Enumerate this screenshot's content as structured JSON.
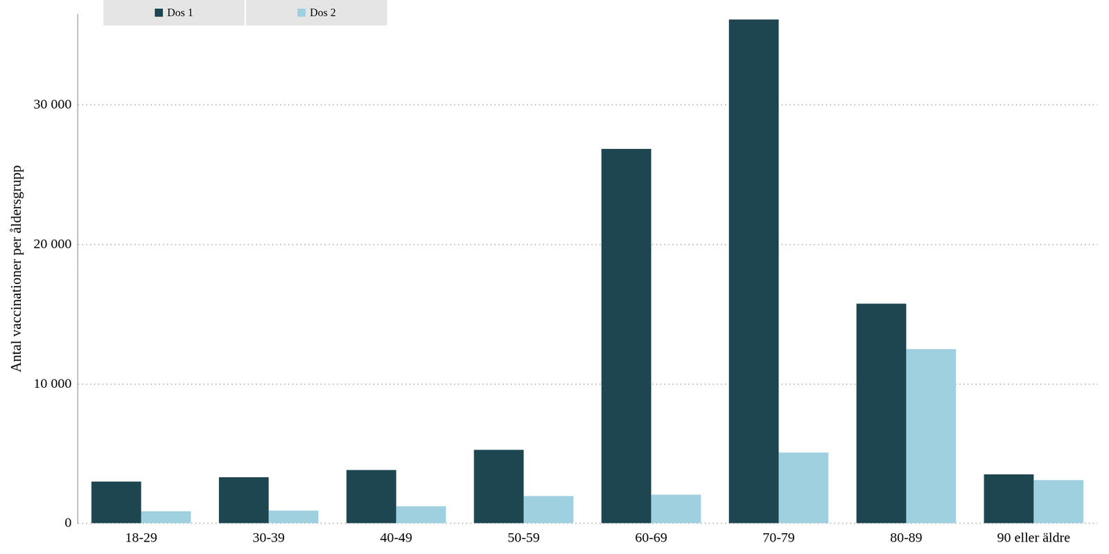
{
  "chart_data": {
    "type": "bar",
    "y_label": "Antal vaccinationer per åldersgrupp",
    "categories": [
      "18-29",
      "30-39",
      "40-49",
      "50-59",
      "60-69",
      "70-79",
      "80-89",
      "90 eller äldre"
    ],
    "series": [
      {
        "name": "Dos 1",
        "color": "#1d4650",
        "values": [
          3005,
          3316,
          3834,
          5285,
          26840,
          36110,
          15750,
          3520
        ]
      },
      {
        "name": "Dos 2",
        "color": "#9fd0e0",
        "values": [
          880,
          930,
          1240,
          1970,
          2070,
          5080,
          12490,
          3110
        ]
      }
    ],
    "ylim": [
      0,
      36500
    ],
    "yticks": [
      0,
      {
        "value": 10000,
        "label": "10 000"
      },
      {
        "value": 20000,
        "label": "20 000"
      },
      {
        "value": 30000,
        "label": "30 000"
      }
    ],
    "grid": true,
    "legend": "top-left"
  }
}
